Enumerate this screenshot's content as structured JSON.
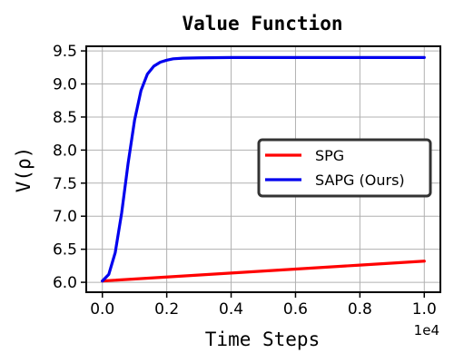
{
  "chart_data": {
    "type": "line",
    "title": "Value Function",
    "xlabel": "Time Steps",
    "ylabel": "V(ρ)",
    "x_offset_label": "1e4",
    "xlim": [
      -0.05,
      1.05
    ],
    "ylim": [
      5.85,
      9.57
    ],
    "x_ticks": [
      0.0,
      0.2,
      0.4,
      0.6,
      0.8,
      1.0
    ],
    "x_tick_labels": [
      "0.0",
      "0.2",
      "0.4",
      "0.6",
      "0.8",
      "1.0"
    ],
    "y_ticks": [
      6.0,
      6.5,
      7.0,
      7.5,
      8.0,
      8.5,
      9.0,
      9.5
    ],
    "y_tick_labels": [
      "6.0",
      "6.5",
      "7.0",
      "7.5",
      "8.0",
      "8.5",
      "9.0",
      "9.5"
    ],
    "grid": true,
    "legend_position": "center-right",
    "series": [
      {
        "name": "SPG",
        "color": "#ff0000",
        "x": [
          0.0,
          0.2,
          0.4,
          0.6,
          0.8,
          1.0
        ],
        "y": [
          6.02,
          6.08,
          6.14,
          6.2,
          6.26,
          6.32
        ]
      },
      {
        "name": "SAPG (Ours)",
        "color": "#0000ee",
        "x": [
          0.0,
          0.02,
          0.04,
          0.06,
          0.08,
          0.1,
          0.12,
          0.14,
          0.16,
          0.18,
          0.2,
          0.22,
          0.25,
          0.3,
          0.4,
          0.6,
          0.8,
          1.0
        ],
        "y": [
          6.02,
          6.12,
          6.45,
          7.05,
          7.8,
          8.45,
          8.9,
          9.15,
          9.27,
          9.33,
          9.36,
          9.38,
          9.39,
          9.395,
          9.4,
          9.4,
          9.4,
          9.4
        ]
      }
    ]
  }
}
